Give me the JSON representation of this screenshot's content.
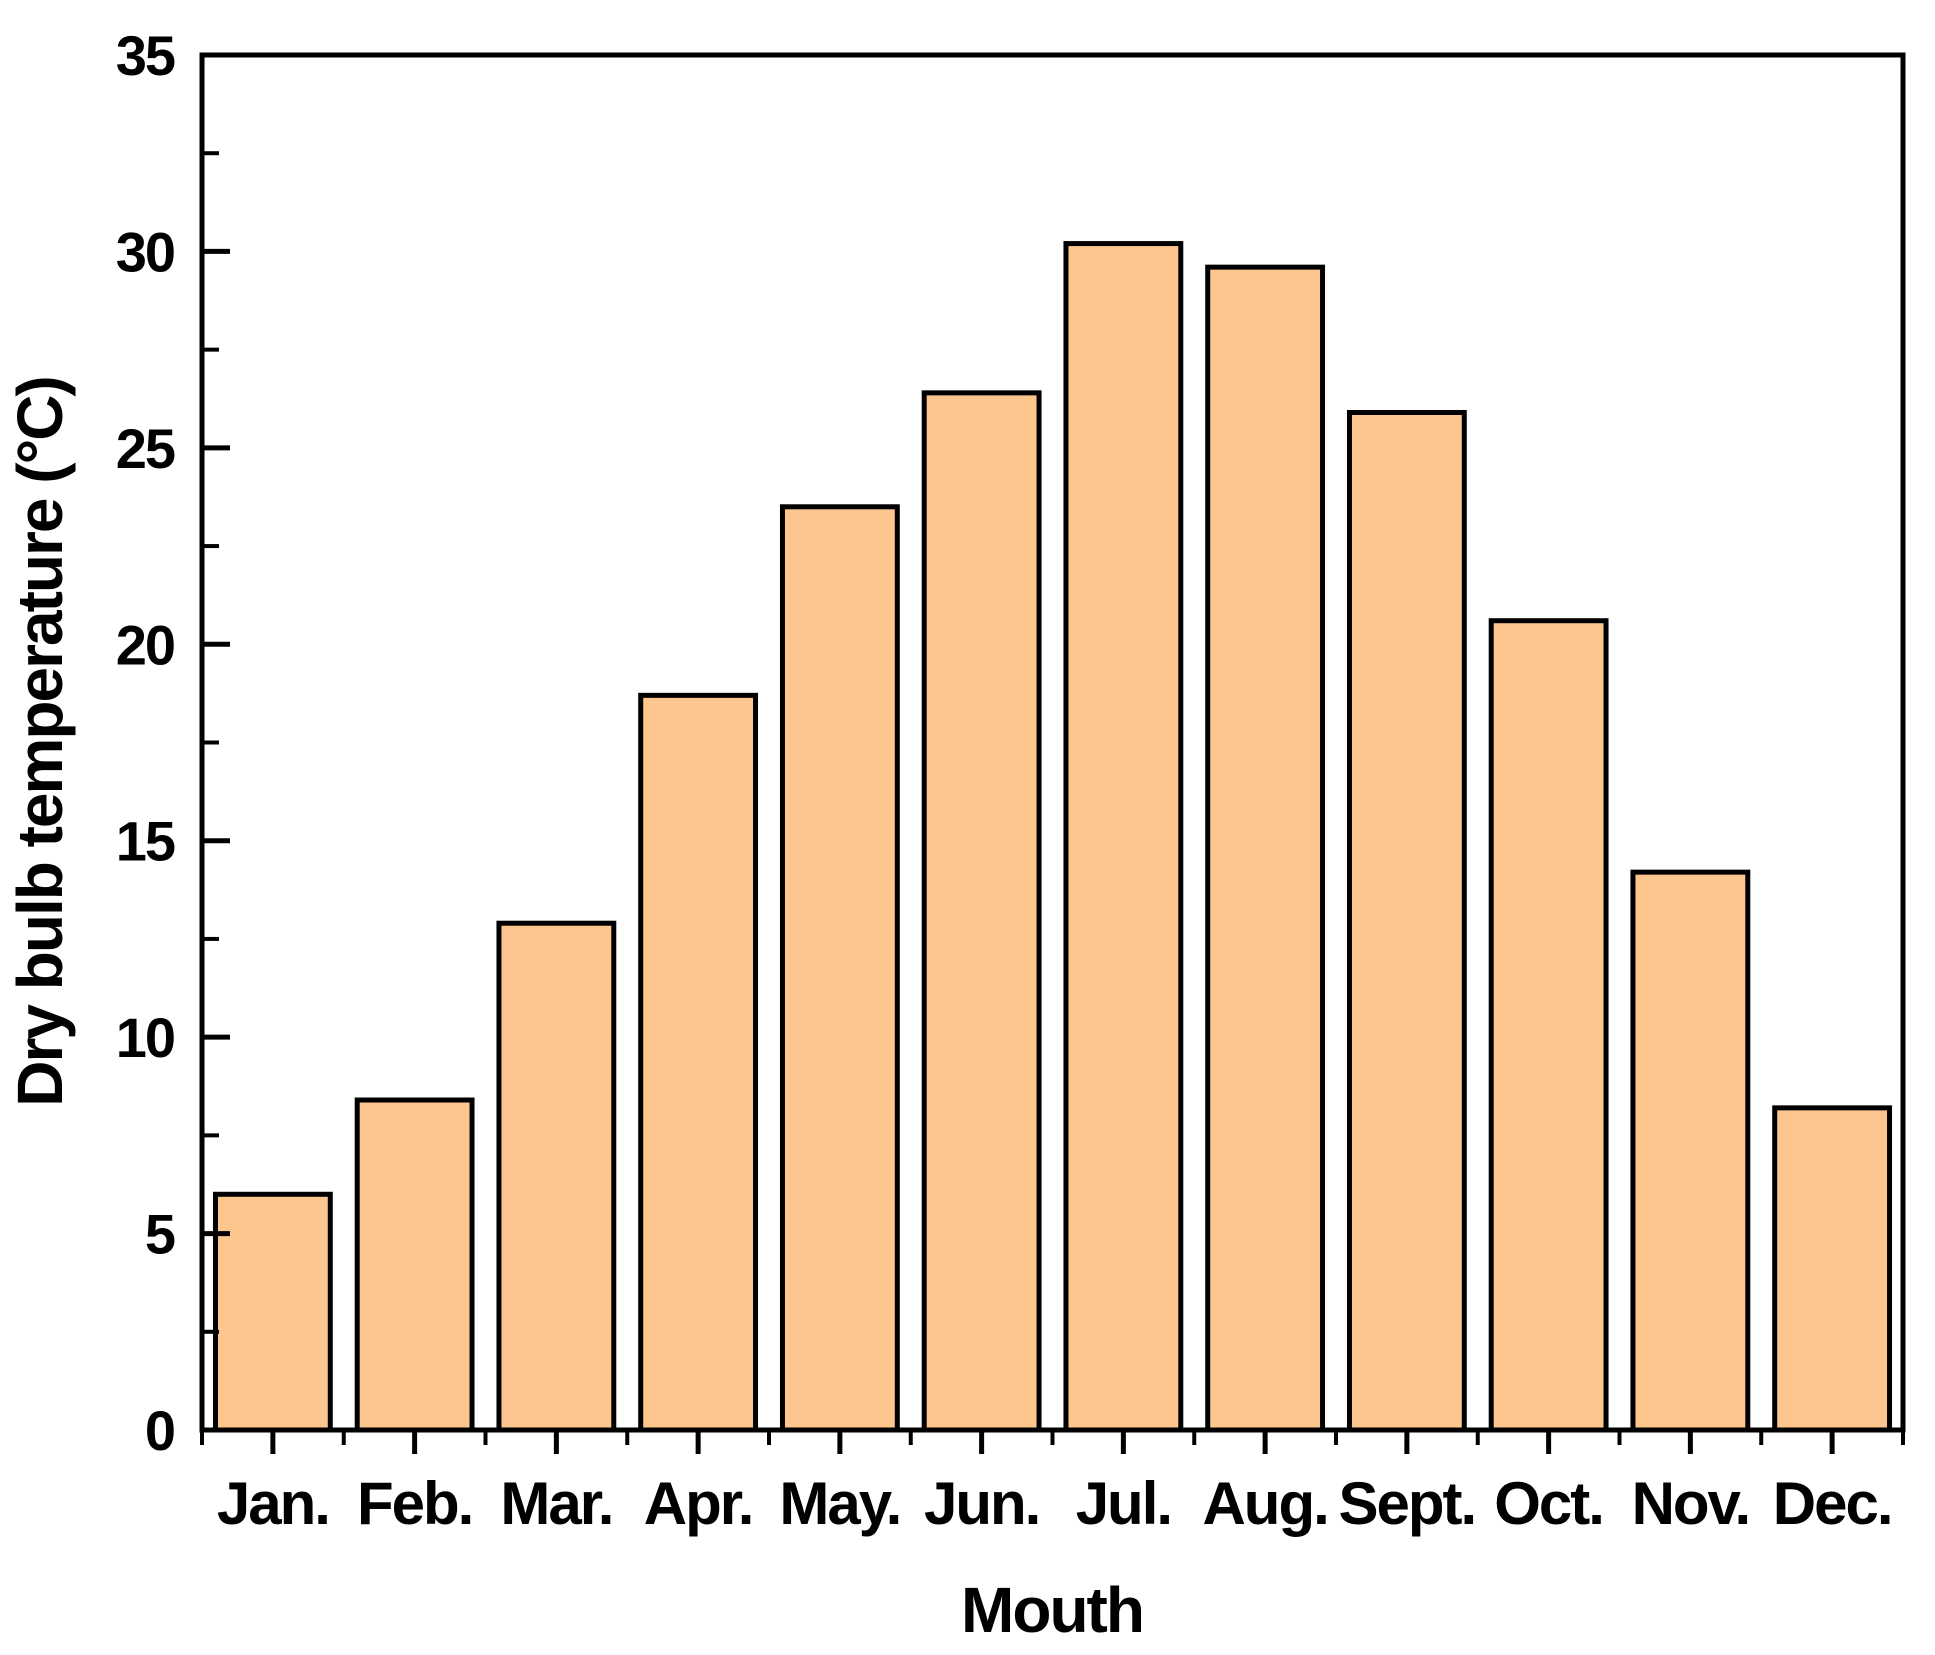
{
  "chart_data": {
    "type": "bar",
    "title": "",
    "xlabel": "Mouth",
    "ylabel": "Dry bulb temperature (°C)",
    "categories": [
      "Jan.",
      "Feb.",
      "Mar.",
      "Apr.",
      "May.",
      "Jun.",
      "Jul.",
      "Aug.",
      "Sept.",
      "Oct.",
      "Nov.",
      "Dec."
    ],
    "values": [
      6.0,
      8.4,
      12.9,
      18.7,
      23.5,
      26.4,
      30.2,
      29.6,
      25.9,
      20.6,
      14.2,
      8.2
    ],
    "ylim": [
      0,
      35
    ],
    "y_major_ticks": [
      0,
      5,
      10,
      15,
      20,
      25,
      30,
      35
    ],
    "y_minor_step": 2.5,
    "grid": false,
    "legend": null,
    "bar_fill": "#FDC68F",
    "bar_stroke": "#000000",
    "axis_color": "#000000",
    "background": "#FFFFFF"
  }
}
